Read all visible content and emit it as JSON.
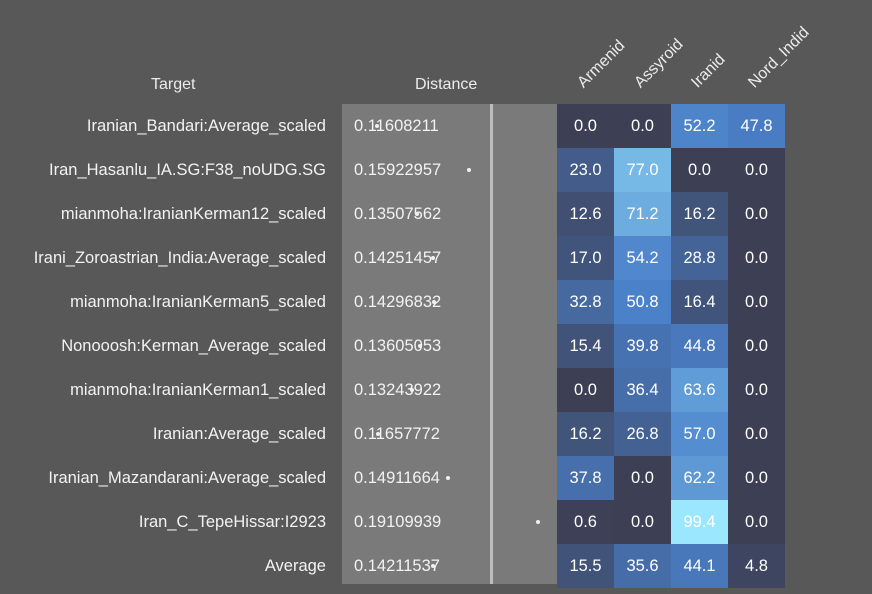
{
  "headers": {
    "target": "Target",
    "distance": "Distance",
    "columns": [
      "Armenid",
      "Assyroid",
      "Iranid",
      "Nord_Indid"
    ]
  },
  "chart_data": {
    "type": "heatmap",
    "columns": [
      "Armenid",
      "Assyroid",
      "Iranid",
      "Nord_Indid"
    ],
    "distance_range": [
      0.1,
      0.2
    ],
    "rows": [
      {
        "target": "Iranian_Bandari:Average_scaled",
        "distance": "0.11608211",
        "values": [
          0.0,
          0.0,
          52.2,
          47.8
        ]
      },
      {
        "target": "Iran_Hasanlu_IA.SG:F38_noUDG.SG",
        "distance": "0.15922957",
        "values": [
          23.0,
          77.0,
          0.0,
          0.0
        ]
      },
      {
        "target": "mianmoha:IranianKerman12_scaled",
        "distance": "0.13507562",
        "values": [
          12.6,
          71.2,
          16.2,
          0.0
        ]
      },
      {
        "target": "Irani_Zoroastrian_India:Average_scaled",
        "distance": "0.14251457",
        "values": [
          17.0,
          54.2,
          28.8,
          0.0
        ]
      },
      {
        "target": "mianmoha:IranianKerman5_scaled",
        "distance": "0.14296832",
        "values": [
          32.8,
          50.8,
          16.4,
          0.0
        ]
      },
      {
        "target": "Nonooosh:Kerman_Average_scaled",
        "distance": "0.13605053",
        "values": [
          15.4,
          39.8,
          44.8,
          0.0
        ]
      },
      {
        "target": "mianmoha:IranianKerman1_scaled",
        "distance": "0.13243922",
        "values": [
          0.0,
          36.4,
          63.6,
          0.0
        ]
      },
      {
        "target": "Iranian:Average_scaled",
        "distance": "0.11657772",
        "values": [
          16.2,
          26.8,
          57.0,
          0.0
        ]
      },
      {
        "target": "Iranian_Mazandarani:Average_scaled",
        "distance": "0.14911664",
        "values": [
          37.8,
          0.0,
          62.2,
          0.0
        ]
      },
      {
        "target": "Iran_C_TepeHissar:I2923",
        "distance": "0.19109939",
        "values": [
          0.6,
          0.0,
          99.4,
          0.0
        ]
      },
      {
        "target": "Average",
        "distance": "0.14211537",
        "values": [
          15.5,
          35.6,
          44.1,
          4.8
        ]
      }
    ]
  },
  "colors": {
    "background": "#585858",
    "distance_panel": "#7a7a7a",
    "heat_low": "#3d3f55",
    "heat_mid": "#4a7fc8",
    "heat_high": "#9be8ff"
  }
}
